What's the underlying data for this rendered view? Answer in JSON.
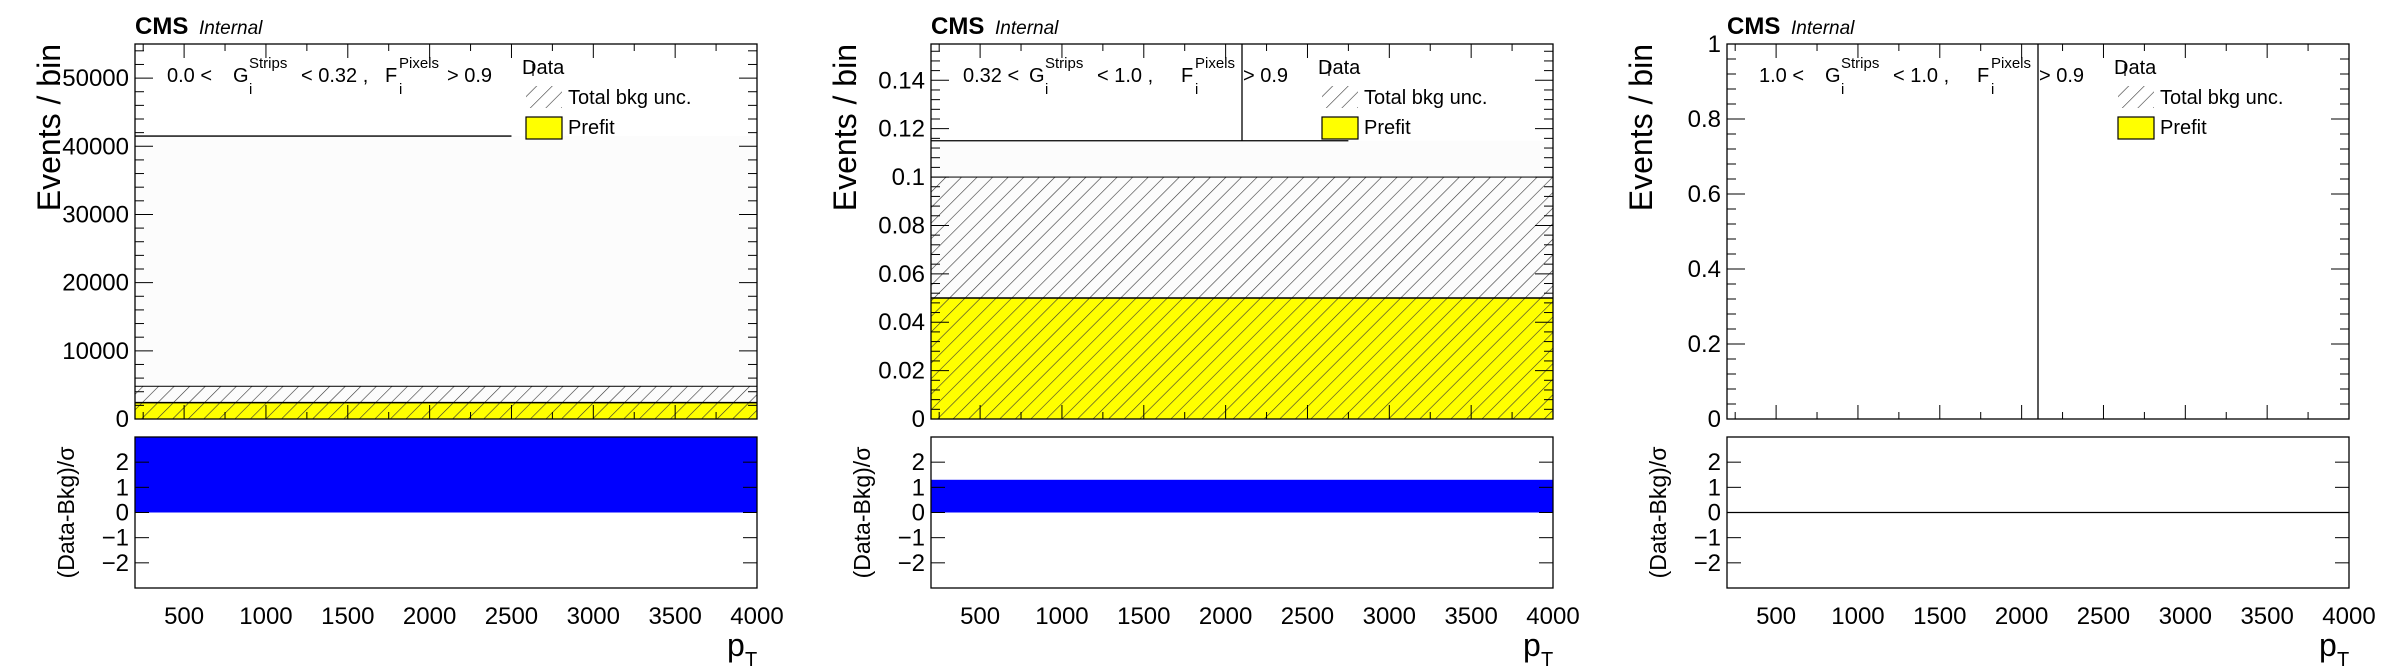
{
  "chart_data": [
    {
      "type": "bar",
      "panel": "left",
      "experiment": "CMS",
      "status": "Internal",
      "selection": {
        "low": "0.0",
        "mid": "0.32",
        "g": "G",
        "g_sup": "Strips",
        "g_sub": "i",
        "f": "F",
        "f_sup": "Pixels",
        "f_sub": "i",
        "thr": "> 0.9",
        "lt1": "<",
        "lt2": "<",
        "sep": ","
      },
      "xlabel": "p",
      "xlabel_sub": "T",
      "ylabel": "Events / bin",
      "ratio_ylabel": "(Data-Bkg)/σ",
      "xlim": [
        200,
        4000
      ],
      "ylim": [
        0,
        55000
      ],
      "yticks": [
        0,
        10000,
        20000,
        30000,
        40000,
        50000
      ],
      "ytick_labels": [
        "0",
        "10000",
        "20000",
        "30000",
        "40000",
        "50000"
      ],
      "xticks": [
        500,
        1000,
        1500,
        2000,
        2500,
        3000,
        3500,
        4000
      ],
      "xtick_labels": [
        "500",
        "1000",
        "1500",
        "2000",
        "2500",
        "3000",
        "3500",
        "4000"
      ],
      "legend": [
        "Data",
        "Total bkg unc.",
        "Prefit"
      ],
      "bins": [
        [
          200,
          4000
        ]
      ],
      "prefit": [
        2400
      ],
      "unc_up": [
        4800
      ],
      "data": [
        41500
      ],
      "data_line_xmax": 2500,
      "ratio_ylim": [
        -3,
        3
      ],
      "ratio_ticks": [
        -2,
        -1,
        0,
        1,
        2
      ],
      "ratio_tick_labels": [
        "−2",
        "−1",
        "0",
        "1",
        "2"
      ],
      "ratio": [
        3
      ]
    },
    {
      "type": "bar",
      "panel": "middle",
      "experiment": "CMS",
      "status": "Internal",
      "selection": {
        "low": "0.32",
        "mid": "1.0",
        "g": "G",
        "g_sup": "Strips",
        "g_sub": "i",
        "f": "F",
        "f_sup": "Pixels",
        "f_sub": "i",
        "thr": "> 0.9",
        "lt1": "<",
        "lt2": "<",
        "sep": ","
      },
      "xlabel": "p",
      "xlabel_sub": "T",
      "ylabel": "Events / bin",
      "ratio_ylabel": "(Data-Bkg)/σ",
      "xlim": [
        200,
        4000
      ],
      "ylim": [
        0,
        0.155
      ],
      "yticks": [
        0,
        0.02,
        0.04,
        0.06,
        0.08,
        0.1,
        0.12,
        0.14
      ],
      "ytick_labels": [
        "0",
        "0.02",
        "0.04",
        "0.06",
        "0.08",
        "0.1",
        "0.12",
        "0.14"
      ],
      "xticks": [
        500,
        1000,
        1500,
        2000,
        2500,
        3000,
        3500,
        4000
      ],
      "xtick_labels": [
        "500",
        "1000",
        "1500",
        "2000",
        "2500",
        "3000",
        "3500",
        "4000"
      ],
      "legend": [
        "Data",
        "Total bkg unc.",
        "Prefit"
      ],
      "bins": [
        [
          200,
          4000
        ]
      ],
      "prefit": [
        0.05
      ],
      "unc_up": [
        0.1
      ],
      "data": [
        0.115
      ],
      "data_line_xmax": 2750,
      "data_x": 2100,
      "ratio_ylim": [
        -3,
        3
      ],
      "ratio_ticks": [
        -2,
        -1,
        0,
        1,
        2
      ],
      "ratio_tick_labels": [
        "−2",
        "−1",
        "0",
        "1",
        "2"
      ],
      "ratio": [
        1.3
      ]
    },
    {
      "type": "bar",
      "panel": "right",
      "experiment": "CMS",
      "status": "Internal",
      "selection": {
        "low": "1.0",
        "mid": "1.0",
        "g": "G",
        "g_sup": "Strips",
        "g_sub": "i",
        "f": "F",
        "f_sup": "Pixels",
        "f_sub": "i",
        "thr": "> 0.9",
        "lt1": "<",
        "lt2": "<",
        "sep": ","
      },
      "xlabel": "p",
      "xlabel_sub": "T",
      "ylabel": "Events / bin",
      "ratio_ylabel": "(Data-Bkg)/σ",
      "xlim": [
        200,
        4000
      ],
      "ylim": [
        0,
        1
      ],
      "yticks": [
        0,
        0.2,
        0.4,
        0.6,
        0.8,
        1
      ],
      "ytick_labels": [
        "0",
        "0.2",
        "0.4",
        "0.6",
        "0.8",
        "1"
      ],
      "xticks": [
        500,
        1000,
        1500,
        2000,
        2500,
        3000,
        3500,
        4000
      ],
      "xtick_labels": [
        "500",
        "1000",
        "1500",
        "2000",
        "2500",
        "3000",
        "3500",
        "4000"
      ],
      "legend": [
        "Data",
        "Total bkg unc.",
        "Prefit"
      ],
      "bins": [
        [
          200,
          4000
        ]
      ],
      "prefit": [
        0
      ],
      "unc_up": [
        0
      ],
      "data": [],
      "data_x": 2100,
      "ratio_ylim": [
        -3,
        3
      ],
      "ratio_ticks": [
        -2,
        -1,
        0,
        1,
        2
      ],
      "ratio_tick_labels": [
        "−2",
        "−1",
        "0",
        "1",
        "2"
      ],
      "ratio": [
        0
      ]
    }
  ],
  "colors": {
    "prefit": "#ffff00",
    "ratio": "#0000ff",
    "unc_hatch": "#444444",
    "frame": "#000000",
    "upper_fill": "#fcfcfc"
  }
}
